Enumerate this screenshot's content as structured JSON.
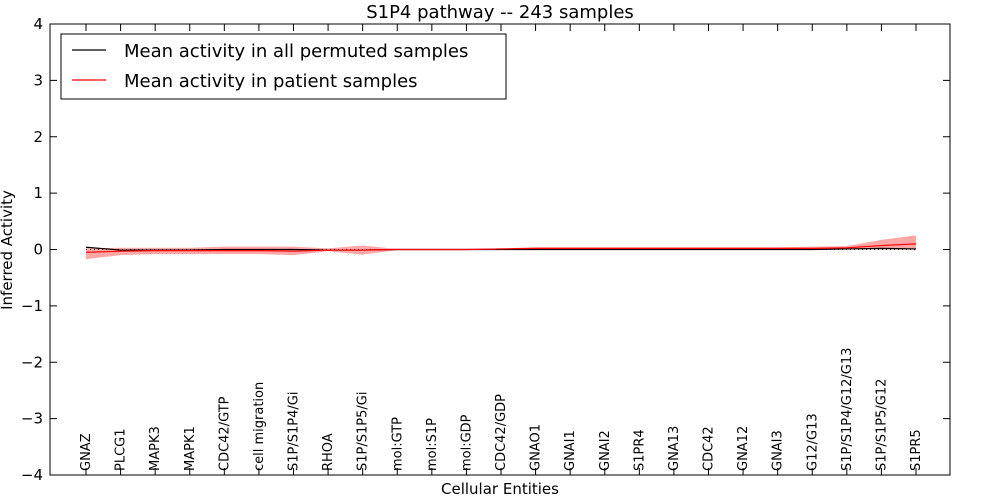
{
  "chart_data": {
    "type": "line",
    "title": "S1P4 pathway -- 243 samples",
    "xlabel": "Cellular Entities",
    "ylabel": "Inferred Activity",
    "ylim": [
      -4,
      4
    ],
    "yticks": [
      "4",
      "3",
      "2",
      "1",
      "0",
      "−1",
      "−2",
      "−3",
      "−4"
    ],
    "ytick_values": [
      4,
      3,
      2,
      1,
      0,
      -1,
      -2,
      -3,
      -4
    ],
    "categories": [
      "GNAZ",
      "PLCG1",
      "MAPK3",
      "MAPK1",
      "CDC42/GTP",
      "cell migration",
      "S1P/S1P4/Gi",
      "RHOA",
      "S1P/S1P5/Gi",
      "mol:GTP",
      "mol:S1P",
      "mol:GDP",
      "CDC42/GDP",
      "GNAO1",
      "GNAI1",
      "GNAI2",
      "S1PR4",
      "GNA13",
      "CDC42",
      "GNA12",
      "GNAI3",
      "G12/G13",
      "S1P/S1P4/G12/G13",
      "S1P/S1P5/G12",
      "S1PR5"
    ],
    "series": [
      {
        "name": "Mean activity in all permuted samples",
        "color": "#000000",
        "values": [
          0.04,
          -0.01,
          -0.01,
          -0.01,
          0.0,
          0.0,
          0.0,
          -0.01,
          -0.01,
          0.0,
          0.0,
          0.0,
          0.0,
          0.0,
          0.0,
          0.0,
          0.0,
          0.0,
          0.0,
          0.0,
          0.0,
          0.0,
          0.01,
          0.02,
          0.01
        ]
      },
      {
        "name": "Mean activity in patient samples",
        "color": "#ff0000",
        "values": [
          -0.05,
          -0.03,
          -0.02,
          -0.02,
          -0.02,
          -0.02,
          -0.03,
          -0.01,
          -0.01,
          0.0,
          0.0,
          0.0,
          0.01,
          0.02,
          0.02,
          0.02,
          0.02,
          0.02,
          0.02,
          0.02,
          0.02,
          0.02,
          0.03,
          0.07,
          0.1
        ],
        "band_upper": [
          0.02,
          0.03,
          0.03,
          0.03,
          0.05,
          0.05,
          0.05,
          0.02,
          0.07,
          0.01,
          0.01,
          0.01,
          0.02,
          0.04,
          0.04,
          0.04,
          0.04,
          0.04,
          0.04,
          0.04,
          0.04,
          0.05,
          0.06,
          0.17,
          0.25
        ],
        "band_lower": [
          -0.17,
          -0.1,
          -0.08,
          -0.08,
          -0.08,
          -0.08,
          -0.1,
          -0.03,
          -0.09,
          -0.01,
          -0.01,
          -0.01,
          0.0,
          0.0,
          0.0,
          0.0,
          0.0,
          0.0,
          0.0,
          0.0,
          0.0,
          0.0,
          0.0,
          0.0,
          0.0
        ]
      }
    ],
    "legend_position": "top-left",
    "band_color": "#ff0000",
    "baseline": 0
  }
}
